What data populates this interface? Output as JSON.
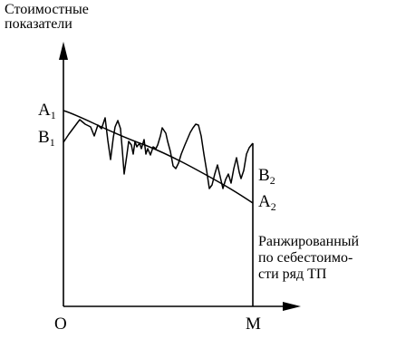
{
  "axes": {
    "y_label": "Стоимостные\nпоказатели",
    "x_label": "Ранжированный\nпо себестоимо-\nсти ряд ТП",
    "origin": "O",
    "end": "M"
  },
  "points": {
    "a1": {
      "letter": "A",
      "sub": "1"
    },
    "b1": {
      "letter": "B",
      "sub": "1"
    },
    "b2": {
      "letter": "B",
      "sub": "2"
    },
    "a2": {
      "letter": "A",
      "sub": "2"
    }
  },
  "colors": {
    "ink": "#000000",
    "background": "#ffffff"
  }
}
